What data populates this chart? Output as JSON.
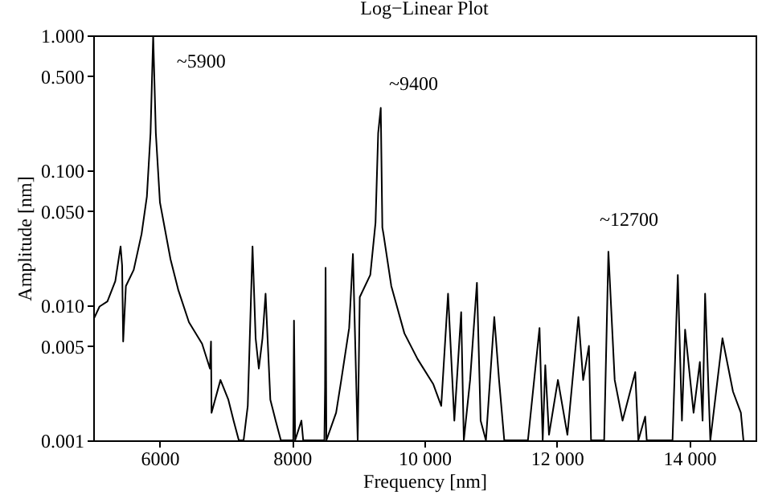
{
  "chart_data": {
    "type": "line",
    "title": "Log−Linear Plot",
    "xlabel": "Frequency [nm]",
    "ylabel": "Amplitude [nm]",
    "x": [
      5017,
      5095,
      5214,
      5333,
      5413,
      5436,
      5452,
      5493,
      5611,
      5730,
      5810,
      5865,
      5905,
      5945,
      6007,
      6167,
      6286,
      6445,
      6643,
      6762,
      6778,
      6786,
      6921,
      7040,
      7119,
      7198,
      7270,
      7333,
      7405,
      7452,
      7500,
      7555,
      7602,
      7674,
      7754,
      7833,
      8020,
      8031,
      8048,
      8143,
      8170,
      8490,
      8500,
      8508,
      8520,
      8667,
      8745,
      8864,
      8921,
      8993,
      9024,
      9183,
      9262,
      9302,
      9341,
      9365,
      9381,
      9500,
      9698,
      9897,
      10135,
      10254,
      10357,
      10452,
      10555,
      10595,
      10690,
      10793,
      10849,
      10929,
      11055,
      11127,
      11206,
      11563,
      11738,
      11786,
      11825,
      11881,
      12016,
      12159,
      12325,
      12397,
      12484,
      12516,
      12714,
      12778,
      12873,
      12992,
      13183,
      13230,
      13333,
      13357,
      13746,
      13826,
      13888,
      13936,
      14064,
      14159,
      14200,
      14238,
      14317,
      14500,
      14659,
      14778,
      14817
    ],
    "series": [
      {
        "color": "#000000",
        "values": [
          0.0081,
          0.0098,
          0.0107,
          0.0151,
          0.0273,
          0.0197,
          0.0054,
          0.0139,
          0.0183,
          0.0338,
          0.064,
          0.189,
          1.0,
          0.189,
          0.058,
          0.0219,
          0.0129,
          0.0075,
          0.0052,
          0.0034,
          0.0054,
          0.0016,
          0.0028,
          0.002,
          0.0014,
          0.001,
          0.001,
          0.0018,
          0.0273,
          0.0057,
          0.0034,
          0.0057,
          0.0122,
          0.002,
          0.0014,
          0.001,
          0.001,
          0.0077,
          0.001,
          0.0014,
          0.001,
          0.001,
          0.0025,
          0.019,
          0.001,
          0.0016,
          0.0028,
          0.0068,
          0.024,
          0.001,
          0.0115,
          0.0168,
          0.041,
          0.189,
          0.29,
          0.0377,
          0.034,
          0.0139,
          0.0062,
          0.004,
          0.0026,
          0.0018,
          0.0122,
          0.0014,
          0.0089,
          0.001,
          0.0028,
          0.0147,
          0.0014,
          0.001,
          0.0082,
          0.0028,
          0.001,
          0.001,
          0.0068,
          0.001,
          0.0036,
          0.0011,
          0.0028,
          0.0011,
          0.0082,
          0.0028,
          0.005,
          0.001,
          0.001,
          0.025,
          0.0028,
          0.0014,
          0.0032,
          0.001,
          0.0015,
          0.001,
          0.001,
          0.0168,
          0.0014,
          0.0066,
          0.0016,
          0.0038,
          0.0014,
          0.0122,
          0.001,
          0.0057,
          0.0023,
          0.0016,
          0.001
        ]
      }
    ],
    "xlim": [
      5000,
      15000
    ],
    "xticks": [
      6000,
      8000,
      {
        "value": 10000,
        "label": "10 000"
      },
      {
        "value": 12000,
        "label": "12 000"
      },
      {
        "value": 14000,
        "label": "14 000"
      }
    ],
    "ylim": [
      0.001,
      1
    ],
    "yticks": [
      {
        "value": 0.001,
        "label": "0.001"
      },
      {
        "value": 0.005,
        "label": "0.005"
      },
      {
        "value": 0.01,
        "label": "0.010"
      },
      {
        "value": 0.05,
        "label": "0.050"
      },
      {
        "value": 0.1,
        "label": "0.100"
      },
      {
        "value": 0.5,
        "label": "0.500"
      },
      {
        "value": 1,
        "label": "1.000"
      }
    ],
    "log": "y",
    "grid": false,
    "annotations": [
      {
        "text": "~5900",
        "x": 5900,
        "y": 1.0
      },
      {
        "text": "~9400",
        "x": 9400,
        "y": 0.29
      },
      {
        "text": "~12700",
        "x": 12700,
        "y": 0.025
      }
    ]
  }
}
